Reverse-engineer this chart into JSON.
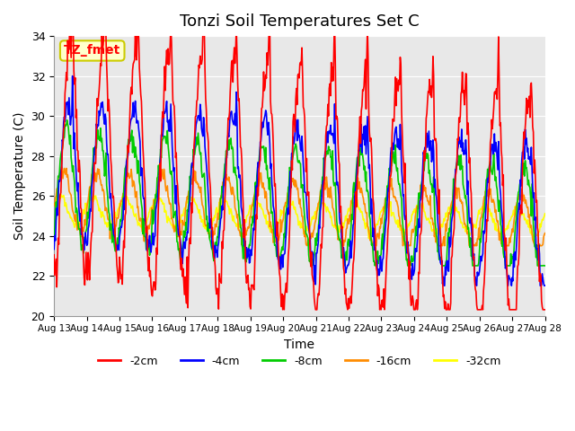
{
  "title": "Tonzi Soil Temperatures Set C",
  "xlabel": "Time",
  "ylabel": "Soil Temperature (C)",
  "ylim": [
    20,
    34
  ],
  "xlim_days": [
    0,
    15
  ],
  "series_colors": {
    "-2cm": "#FF0000",
    "-4cm": "#0000FF",
    "-8cm": "#00CC00",
    "-16cm": "#FF8C00",
    "-32cm": "#FFFF00"
  },
  "series_order": [
    "-2cm",
    "-4cm",
    "-8cm",
    "-16cm",
    "-32cm"
  ],
  "annotation_label": "TZ_fmet",
  "annotation_bg": "#FFFFCC",
  "annotation_border": "#CCCC00",
  "bg_color": "#E8E8E8",
  "xtick_labels": [
    "Aug 13",
    "Aug 14",
    "Aug 15",
    "Aug 16",
    "Aug 17",
    "Aug 18",
    "Aug 19",
    "Aug 20",
    "Aug 21",
    "Aug 22",
    "Aug 23",
    "Aug 24",
    "Aug 25",
    "Aug 26",
    "Aug 27",
    "Aug 28"
  ],
  "ytick_values": [
    20,
    22,
    24,
    26,
    28,
    30,
    32,
    34
  ]
}
